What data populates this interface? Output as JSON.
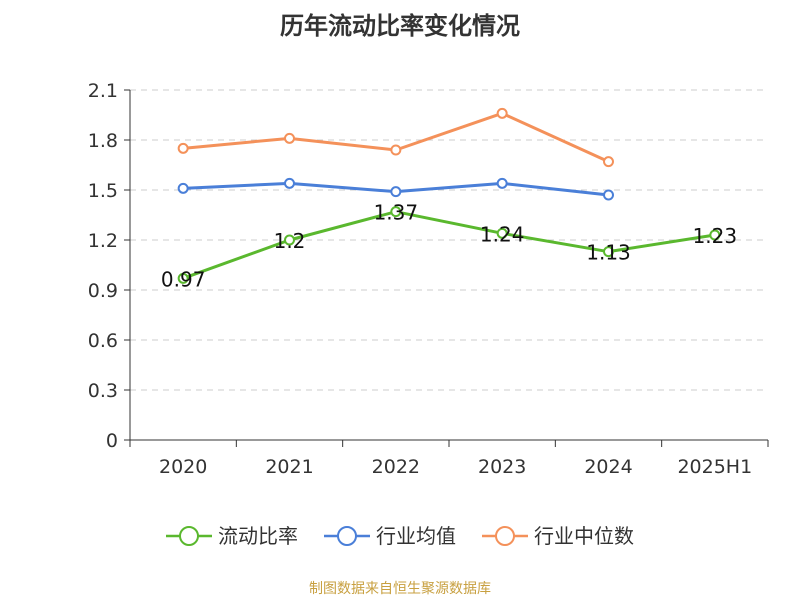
{
  "title": "历年流动比率变化情况",
  "source": "制图数据来自恒生聚源数据库",
  "chart_data": {
    "type": "line",
    "title": "历年流动比率变化情况",
    "categories": [
      "2020",
      "2021",
      "2022",
      "2023",
      "2024",
      "2025H1"
    ],
    "ylim": [
      0,
      2.1
    ],
    "yticks": [
      0,
      0.3,
      0.6,
      0.9,
      1.2,
      1.5,
      1.8,
      2.1
    ],
    "ytick_labels": [
      "0",
      "0.3",
      "0.6",
      "0.9",
      "1.2",
      "1.5",
      "1.8",
      "2.1"
    ],
    "grid": "horizontal-dashed",
    "legend_position": "bottom",
    "series": [
      {
        "name": "流动比率",
        "color": "#5ab82e",
        "values": [
          0.97,
          1.2,
          1.37,
          1.24,
          1.13,
          1.23
        ],
        "labels": [
          "0.97",
          "1.2",
          "1.37",
          "1.24",
          "1.13",
          "1.23"
        ]
      },
      {
        "name": "行业均值",
        "color": "#4a7fd8",
        "values": [
          1.51,
          1.54,
          1.49,
          1.54,
          1.47,
          null
        ]
      },
      {
        "name": "行业中位数",
        "color": "#f4915a",
        "values": [
          1.75,
          1.81,
          1.74,
          1.96,
          1.67,
          null
        ]
      }
    ]
  }
}
